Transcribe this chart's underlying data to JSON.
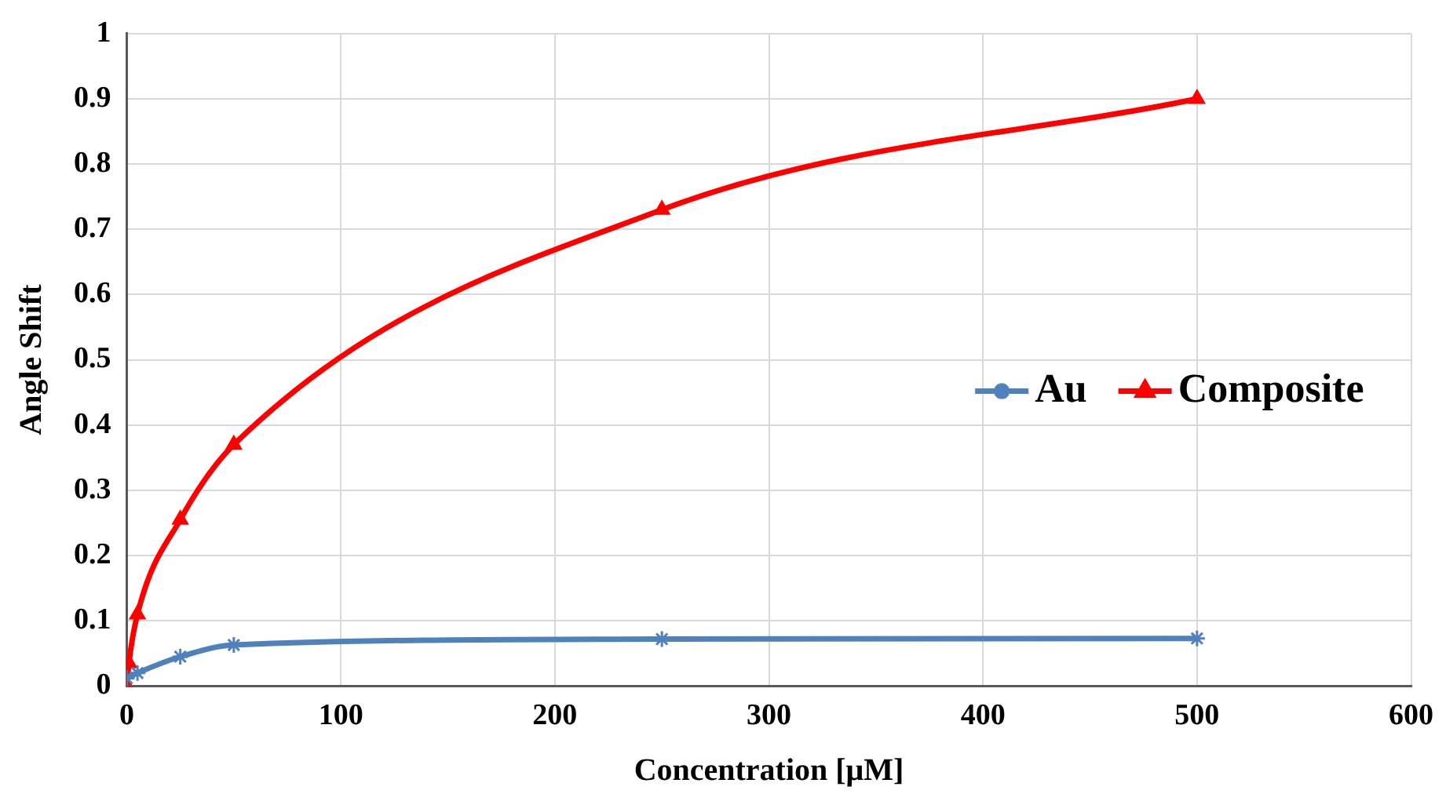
{
  "chart_data": {
    "type": "line",
    "xlabel": "Concentration [μM]",
    "ylabel": "Angle Shift",
    "xlim": [
      0,
      600
    ],
    "xticks": [
      0,
      100,
      200,
      300,
      400,
      500,
      600
    ],
    "ylim": [
      0,
      1
    ],
    "yticks": [
      0,
      0.1,
      0.2,
      0.3,
      0.4,
      0.5,
      0.6,
      0.7,
      0.8,
      0.9,
      1
    ],
    "grid": true,
    "legend": "right",
    "series": [
      {
        "name": "Au",
        "color": "#4f81bd",
        "marker": "cross",
        "x": [
          0,
          5,
          25,
          50,
          250,
          500
        ],
        "values": [
          0.012,
          0.02,
          0.045,
          0.063,
          0.072,
          0.073
        ]
      },
      {
        "name": "Composite",
        "color": "#ff0000",
        "marker": "triangle",
        "x": [
          0,
          1,
          5,
          25,
          50,
          250,
          500
        ],
        "values": [
          0,
          0.035,
          0.11,
          0.255,
          0.37,
          0.73,
          0.9
        ]
      }
    ]
  }
}
